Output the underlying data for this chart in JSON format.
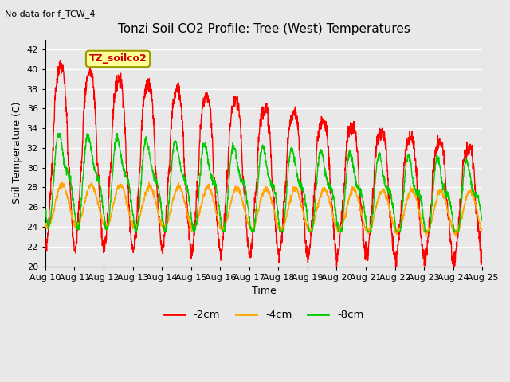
{
  "title": "Tonzi Soil CO2 Profile: Tree (West) Temperatures",
  "no_data_text": "No data for f_TCW_4",
  "ylabel": "Soil Temperature (C)",
  "xlabel": "Time",
  "ylim": [
    20,
    43
  ],
  "yticks": [
    20,
    22,
    24,
    26,
    28,
    30,
    32,
    34,
    36,
    38,
    40,
    42
  ],
  "xtick_labels": [
    "Aug 10",
    "Aug 11",
    "Aug 12",
    "Aug 13",
    "Aug 14",
    "Aug 15",
    "Aug 16",
    "Aug 17",
    "Aug 18",
    "Aug 19",
    "Aug 20",
    "Aug 21",
    "Aug 22",
    "Aug 23",
    "Aug 24",
    "Aug 25"
  ],
  "legend_entries": [
    "-2cm",
    "-4cm",
    "-8cm"
  ],
  "legend_colors": [
    "#ff0000",
    "#ffa500",
    "#00cc00"
  ],
  "line_width": 1.0,
  "bg_color": "#e8e8e8",
  "plot_bg_color": "#e8e8e8",
  "grid_color": "#ffffff",
  "legend_box_facecolor": "#ffff99",
  "legend_box_edgecolor": "#999900",
  "legend_box_label": "TZ_soilco2",
  "legend_box_label_color": "#cc0000",
  "title_fontsize": 11,
  "label_fontsize": 9,
  "tick_fontsize": 8
}
